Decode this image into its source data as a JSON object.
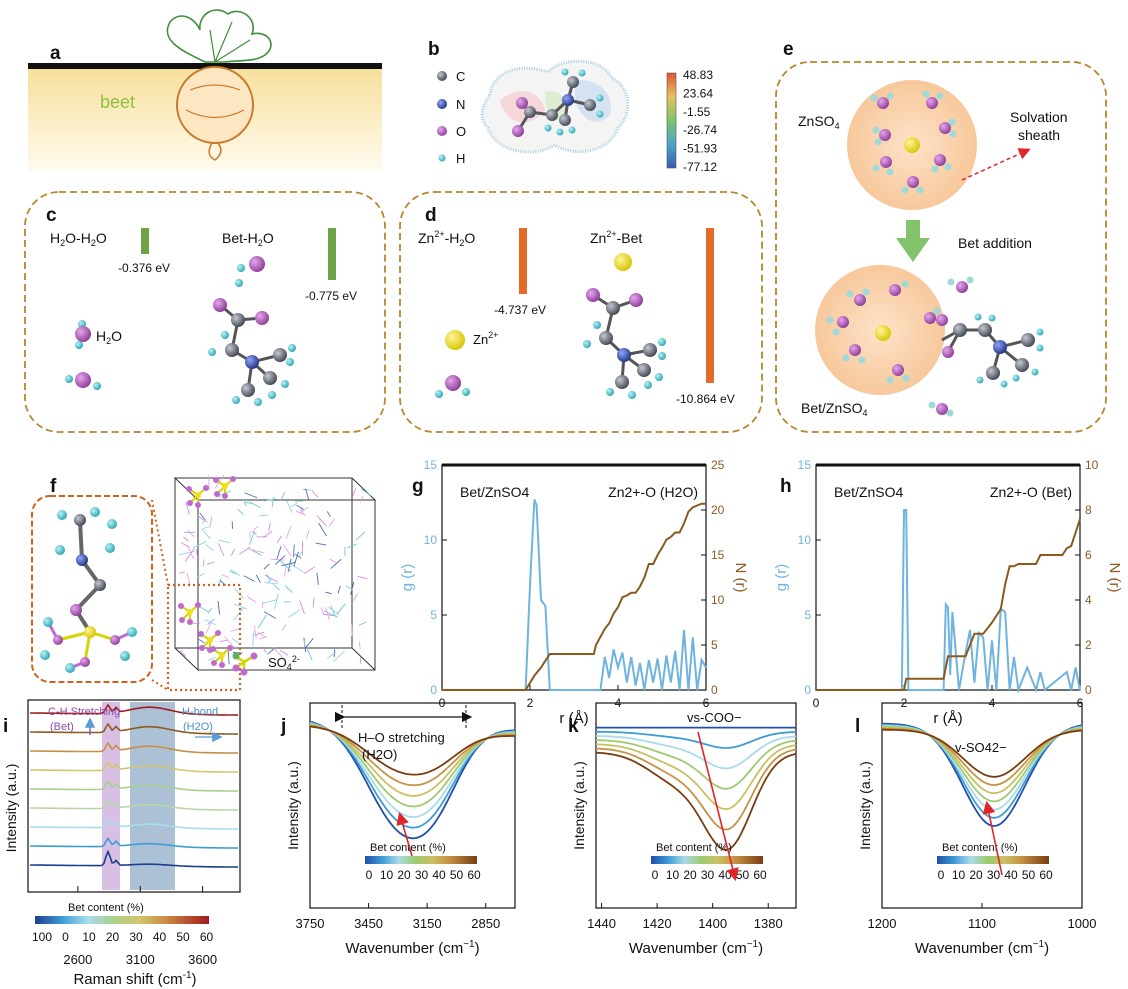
{
  "panels": {
    "a": {
      "label": "a",
      "text": "beet"
    },
    "b": {
      "label": "b",
      "atoms": [
        "C",
        "N",
        "O",
        "H"
      ],
      "colorbar": [
        "48.83",
        "23.64",
        "-1.55",
        "-26.74",
        "-51.93",
        "-77.12"
      ]
    },
    "c": {
      "label": "c",
      "left_title": "H2O-H2O",
      "left_energy": "-0.376 eV",
      "right_title": "Bet-H2O",
      "right_energy": "-0.775 eV",
      "molecule": "H2O"
    },
    "d": {
      "label": "d",
      "left_title": "Zn2+-H2O",
      "left_energy": "-4.737 eV",
      "right_title": "Zn2+-Bet",
      "right_energy": "-10.864 eV",
      "ion": "Zn2+"
    },
    "e": {
      "label": "e",
      "top_label": "ZnSO4",
      "sheath_label_1": "Solvation",
      "sheath_label_2": "sheath",
      "arrow_label": "Bet addition",
      "bottom_label": "Bet/ZnSO4"
    },
    "f": {
      "label": "f",
      "legend": "SO42-"
    },
    "i": {
      "label": "i",
      "annot_left_1": "C-H Stretching",
      "annot_left_2": "(Bet)",
      "annot_right_1": "H-bond",
      "annot_right_2": "(H2O)",
      "ylabel": "Intensity (a.u.)",
      "xlabel": "Raman shift (cm-1)",
      "colorbar_title": "Bet content (%)",
      "colorbar_ticks": [
        "100",
        "0",
        "10",
        "20",
        "30",
        "40",
        "50",
        "60"
      ]
    },
    "j": {
      "label": "j",
      "annot_1": "H–O stretching",
      "annot_2": "(H2O)",
      "colorbar_title": "Bet content (%)"
    },
    "k": {
      "label": "k",
      "annot": "vs-COO−",
      "colorbar_title": "Bet content (%)"
    },
    "l": {
      "label": "l",
      "annot": "v-SO42−",
      "colorbar_title": "Bet content (%)"
    }
  },
  "colors": {
    "dash_border": "#b8862b",
    "gr_line": "#6fb3e0",
    "nr_line": "#8a5a1f",
    "zn": "#f0e016",
    "o": "#b35ab8",
    "h": "#55c3cc",
    "c": "#5e6470"
  },
  "chart_data": [
    {
      "panel": "g",
      "type": "line",
      "title": "Bet/ZnSO4",
      "annotation": "Zn2+-O (H2O)",
      "xlabel": "r (Å)",
      "ylabel": "g (r)",
      "y2label": "N (r)",
      "xlim": [
        0,
        6
      ],
      "ylim": [
        0,
        15
      ],
      "y2lim": [
        0,
        25
      ],
      "xticks": [
        0,
        2,
        4,
        6
      ],
      "yticks": [
        0,
        5,
        10,
        15
      ],
      "y2ticks": [
        0,
        5,
        10,
        15,
        20,
        25
      ],
      "series": [
        {
          "axis": "left",
          "x": [
            1.9,
            2.0,
            2.1,
            2.15,
            2.25,
            2.35,
            2.45,
            3.6,
            3.7,
            3.8,
            3.9,
            4.0,
            4.1,
            4.2,
            4.3,
            4.4,
            4.5,
            4.6,
            4.7,
            4.8,
            4.9,
            5.0,
            5.1,
            5.2,
            5.3,
            5.4,
            5.5,
            5.6,
            5.7,
            5.8,
            5.9,
            6.0
          ],
          "y": [
            0,
            7,
            12.7,
            12.3,
            6,
            5.6,
            0,
            0,
            2.2,
            0.8,
            2.7,
            1.5,
            2.5,
            0.5,
            2.2,
            0.3,
            1.8,
            0,
            2.0,
            0.5,
            2.1,
            0,
            2.3,
            0.5,
            2.6,
            0,
            4.0,
            0,
            3.5,
            0,
            2.0,
            1.5
          ]
        },
        {
          "axis": "right",
          "x": [
            0,
            1.9,
            2.0,
            2.1,
            2.25,
            2.45,
            3.45,
            3.5,
            3.7,
            3.8,
            3.9,
            4.0,
            4.1,
            4.2,
            4.3,
            4.4,
            4.5,
            4.6,
            4.7,
            4.8,
            4.9,
            5.0,
            5.1,
            5.2,
            5.3,
            5.4,
            5.5,
            5.6,
            5.7,
            5.8,
            5.9,
            6.0
          ],
          "y": [
            0,
            0,
            0.8,
            1.6,
            2.5,
            4.0,
            4.0,
            5.0,
            6.8,
            7.4,
            8.5,
            9.2,
            10.3,
            10.5,
            10.8,
            10.8,
            11.5,
            12.5,
            14.0,
            14.0,
            15.0,
            15.8,
            16.7,
            17.0,
            17.5,
            17.5,
            18.5,
            19.8,
            20.3,
            20.5,
            20.7,
            20.7
          ]
        }
      ]
    },
    {
      "panel": "h",
      "type": "line",
      "title": "Bet/ZnSO4",
      "annotation": "Zn2+-O (Bet)",
      "xlabel": "r (Å)",
      "ylabel": "g (r)",
      "y2label": "N (r)",
      "xlim": [
        0,
        6
      ],
      "ylim": [
        0,
        15
      ],
      "y2lim": [
        0,
        10
      ],
      "xticks": [
        0,
        2,
        4,
        6
      ],
      "yticks": [
        0,
        5,
        10,
        15
      ],
      "y2ticks": [
        0,
        2,
        4,
        6,
        8,
        10
      ],
      "series": [
        {
          "axis": "left",
          "x": [
            1.95,
            2.0,
            2.05,
            2.1,
            2.9,
            2.95,
            3.0,
            3.05,
            3.1,
            3.25,
            3.4,
            3.5,
            3.6,
            3.7,
            3.8,
            3.9,
            4.0,
            4.1,
            4.2,
            4.3,
            4.4,
            4.5,
            4.6,
            4.8,
            5.0,
            5.1,
            5.2,
            5.7,
            5.8,
            5.9,
            6.0
          ],
          "y": [
            0,
            12,
            12,
            0,
            0,
            5.7,
            5.5,
            1,
            5.2,
            0,
            2.5,
            4,
            0.5,
            3.8,
            3.5,
            0,
            3.3,
            0,
            5.4,
            5.2,
            0,
            2.2,
            0,
            1.5,
            0,
            1.2,
            0,
            1.2,
            0,
            1.5,
            0
          ]
        },
        {
          "axis": "right",
          "x": [
            0,
            2.0,
            2.05,
            2.1,
            2.9,
            3.0,
            3.1,
            3.4,
            3.6,
            3.8,
            4.0,
            4.2,
            4.3,
            4.4,
            4.5,
            4.6,
            4.8,
            5.0,
            5.1,
            5.3,
            5.4,
            5.6,
            5.7,
            5.8,
            5.9,
            6.0
          ],
          "y": [
            0,
            0,
            0.5,
            0.5,
            0.5,
            1.5,
            1.5,
            1.5,
            2.5,
            2.5,
            3.0,
            3.6,
            4.7,
            5.5,
            5.5,
            5.6,
            5.6,
            5.6,
            6.0,
            6.0,
            6.0,
            6.0,
            6.3,
            6.4,
            7.0,
            7.6
          ]
        }
      ]
    },
    {
      "panel": "i",
      "type": "line",
      "xlabel": "Raman shift (cm-1)",
      "ylabel": "Intensity (a.u.)",
      "xticks": [
        2600,
        3100,
        3600
      ],
      "xlim": [
        2200,
        3900
      ]
    },
    {
      "panel": "j",
      "type": "line",
      "xlabel": "Wavenumber (cm-1)",
      "ylabel": "Intensity (a.u.)",
      "xticks": [
        3750,
        3450,
        3150,
        2850
      ],
      "xlim": [
        3750,
        2700
      ],
      "colorbar_ticks": [
        "0",
        "10",
        "20",
        "30",
        "40",
        "50",
        "60"
      ]
    },
    {
      "panel": "k",
      "type": "line",
      "xlabel": "Wavenumber (cm-1)",
      "ylabel": "Intensity (a.u.)",
      "xticks": [
        1440,
        1420,
        1400,
        1380
      ],
      "xlim": [
        1442,
        1370
      ],
      "colorbar_ticks": [
        "0",
        "10",
        "20",
        "30",
        "40",
        "50",
        "60"
      ]
    },
    {
      "panel": "l",
      "type": "line",
      "xlabel": "Wavenumber (cm-1)",
      "ylabel": "Intensity (a.u.)",
      "xticks": [
        1200,
        1100,
        1000
      ],
      "xlim": [
        1200,
        1000
      ],
      "colorbar_ticks": [
        "0",
        "10",
        "20",
        "30",
        "40",
        "50",
        "60"
      ]
    }
  ]
}
